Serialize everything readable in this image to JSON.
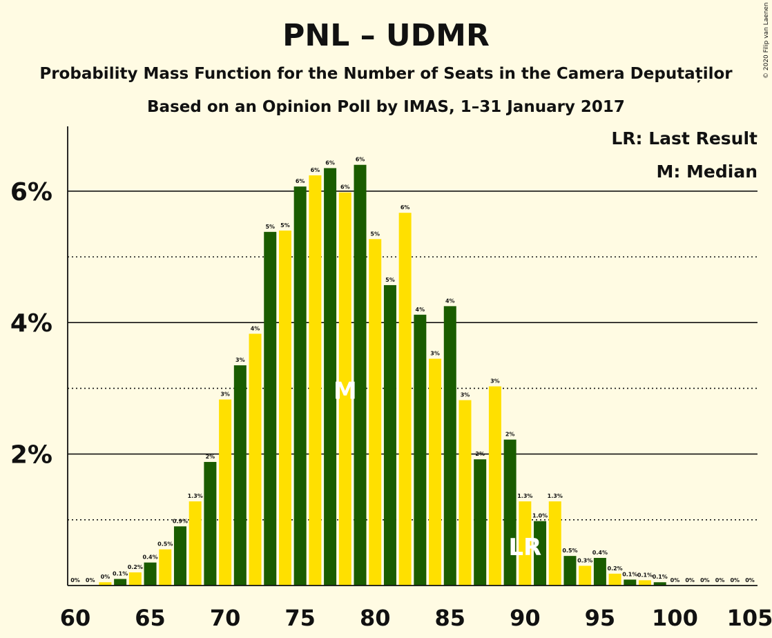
{
  "chart_data": {
    "type": "bar",
    "title": "PNL – UDMR",
    "subtitle": "Probability Mass Function for the Number of Seats in the Camera Deputaților",
    "subtitle2": "Based on an Opinion Poll by IMAS, 1–31 January 2017",
    "copyright": "© 2020 Filip van Laenen",
    "legend": {
      "lr": "LR: Last Result",
      "m": "M: Median",
      "placement": "top-right"
    },
    "colors": {
      "dark": "#1A5C00",
      "light": "#FFE000",
      "background": "#FFFBE3"
    },
    "x": [
      60,
      61,
      62,
      63,
      64,
      65,
      66,
      67,
      68,
      69,
      70,
      71,
      72,
      73,
      74,
      75,
      76,
      77,
      78,
      79,
      80,
      81,
      82,
      83,
      84,
      85,
      86,
      87,
      88,
      89,
      90,
      91,
      92,
      93,
      94,
      95,
      96,
      97,
      98,
      99,
      100,
      101,
      102,
      103,
      104,
      105
    ],
    "values": [
      0,
      0,
      0.05,
      0.1,
      0.2,
      0.35,
      0.55,
      0.9,
      1.28,
      1.88,
      2.83,
      3.35,
      3.83,
      5.38,
      5.4,
      6.07,
      6.24,
      6.35,
      5.98,
      6.4,
      5.27,
      4.57,
      5.67,
      4.12,
      3.45,
      4.25,
      2.82,
      1.92,
      3.03,
      2.22,
      1.28,
      0.98,
      1.28,
      0.45,
      0.3,
      0.42,
      0.18,
      0.09,
      0.08,
      0.05,
      0,
      0,
      0,
      0,
      0,
      0
    ],
    "labels": [
      "0%",
      "0%",
      "0%",
      "0.1%",
      "0.2%",
      "0.4%",
      "0.5%",
      "0.9%",
      "1.3%",
      "2%",
      "3%",
      "3%",
      "4%",
      "5%",
      "5%",
      "6%",
      "6%",
      "6%",
      "6%",
      "6%",
      "5%",
      "5%",
      "6%",
      "4%",
      "3%",
      "4%",
      "3%",
      "2%",
      "3%",
      "2%",
      "1.3%",
      "1.0%",
      "1.3%",
      "0.5%",
      "0.3%",
      "0.4%",
      "0.2%",
      "0.1%",
      "0.1%",
      "0.1%",
      "0%",
      "0%",
      "0%",
      "0%",
      "0%",
      "0%"
    ],
    "median_seat": 78,
    "median_marker": "M",
    "last_result_seat": 90,
    "last_result_marker": "LR",
    "ylim": [
      0,
      7
    ],
    "yticks": [
      {
        "value": 2,
        "label": "2%"
      },
      {
        "value": 4,
        "label": "4%"
      },
      {
        "value": 6,
        "label": "6%"
      }
    ],
    "minor_gridlines": [
      1,
      3,
      5
    ],
    "xticks": [
      60,
      65,
      70,
      75,
      80,
      85,
      90,
      95,
      100,
      105
    ]
  }
}
